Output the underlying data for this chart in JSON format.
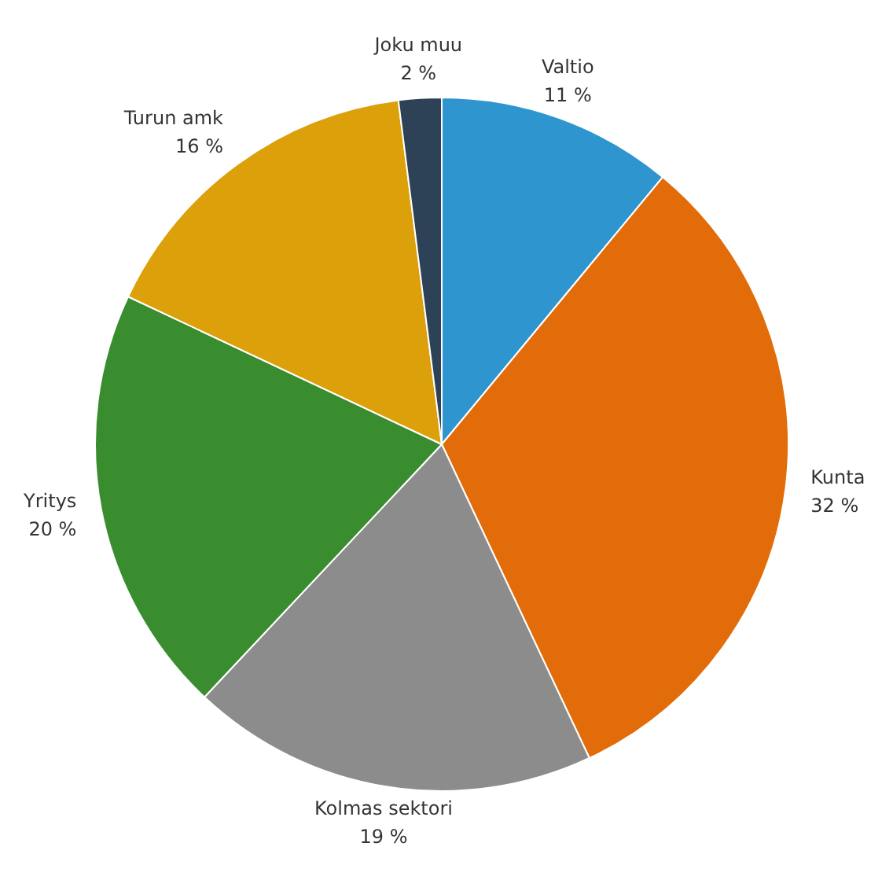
{
  "chart_data": {
    "type": "pie",
    "categories": [
      "Valtio",
      "Kunta",
      "Kolmas sektori",
      "Yritys",
      "Turun amk",
      "Joku muu"
    ],
    "values": [
      11,
      32,
      19,
      20,
      16,
      2
    ],
    "value_labels": [
      "11 %",
      "32 %",
      "19 %",
      "20 %",
      "16 %",
      "2 %"
    ],
    "colors": [
      "#2e95cf",
      "#e36c0a",
      "#8c8c8c",
      "#3a8d2f",
      "#dba00a",
      "#2e4257"
    ],
    "legend": false
  }
}
